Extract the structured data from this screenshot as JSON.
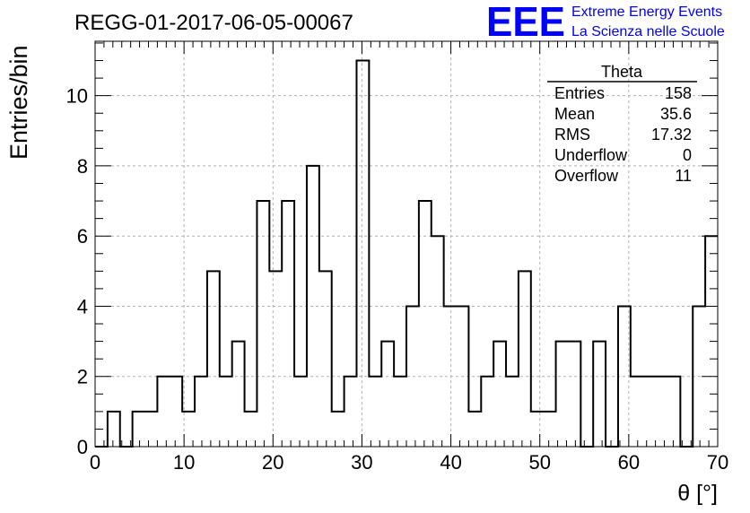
{
  "header": {
    "run_title": "REGG-01-2017-06-05-00067",
    "logo_text": "EEE",
    "org_line1": "Extreme Energy Events",
    "org_line2": "La Scienza nelle Scuole"
  },
  "stats_box": {
    "title": "Theta",
    "rows": [
      {
        "label": "Entries",
        "value": "158"
      },
      {
        "label": "Mean",
        "value": "35.6"
      },
      {
        "label": "RMS",
        "value": "17.32"
      },
      {
        "label": "Underflow",
        "value": "0"
      },
      {
        "label": "Overflow",
        "value": "11"
      }
    ]
  },
  "colors": {
    "logo": "#0000ff",
    "org_text": "#0000ff",
    "histogram": "#000000",
    "grid": "#b0b0b0"
  },
  "chart_data": {
    "type": "bar",
    "style": "step-histogram",
    "xlabel": "θ [°]",
    "ylabel": "Entries/bin",
    "xlim": [
      0,
      70
    ],
    "ylim": [
      0,
      11.55
    ],
    "grid": true,
    "bin_width": 1.4,
    "bin_edges_start": 0,
    "x_ticks": [
      0,
      10,
      20,
      30,
      40,
      50,
      60,
      70
    ],
    "y_ticks": [
      0,
      2,
      4,
      6,
      8,
      10
    ],
    "values": [
      0,
      1,
      0,
      1,
      1,
      2,
      2,
      1,
      2,
      5,
      2,
      3,
      1,
      7,
      5,
      7,
      2,
      8,
      5,
      1,
      2,
      11,
      2,
      3,
      2,
      4,
      7,
      6,
      4,
      4,
      1,
      2,
      3,
      2,
      5,
      1,
      1,
      3,
      3,
      0,
      3,
      0,
      4,
      2,
      2,
      2,
      2,
      0,
      4,
      6
    ]
  }
}
